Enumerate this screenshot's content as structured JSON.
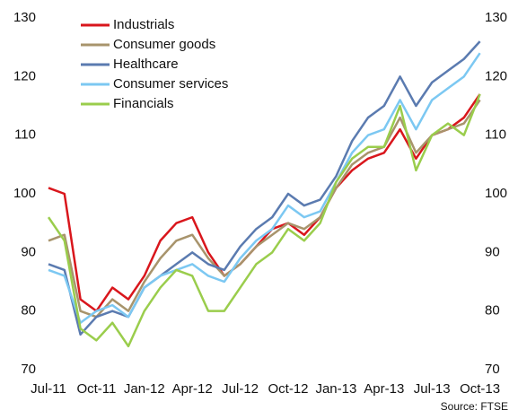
{
  "chart_data": {
    "type": "line",
    "categories": [
      "Jul-11",
      null,
      null,
      "Oct-11",
      null,
      null,
      "Jan-12",
      null,
      null,
      "Apr-12",
      null,
      null,
      "Jul-12",
      null,
      null,
      "Oct-12",
      null,
      null,
      "Jan-13",
      null,
      null,
      "Apr-13",
      null,
      null,
      "Jul-13",
      null,
      null,
      "Oct-13"
    ],
    "series": [
      {
        "name": "Industrials",
        "color": "#d9161c",
        "values": [
          101,
          100,
          82,
          80,
          84,
          82,
          86,
          92,
          95,
          96,
          90,
          86,
          88,
          91,
          94,
          95,
          93,
          96,
          101,
          104,
          106,
          107,
          111,
          106,
          110,
          111,
          113,
          117
        ]
      },
      {
        "name": "Consumer goods",
        "color": "#a8946c",
        "values": [
          92,
          93,
          80,
          79,
          82,
          80,
          85,
          89,
          92,
          93,
          89,
          86,
          88,
          91,
          93,
          95,
          94,
          96,
          101,
          105,
          107,
          108,
          113,
          107,
          110,
          111,
          112,
          116
        ]
      },
      {
        "name": "Healthcare",
        "color": "#5b7bb0",
        "values": [
          88,
          87,
          76,
          79,
          80,
          79,
          84,
          86,
          88,
          90,
          88,
          87,
          91,
          94,
          96,
          100,
          98,
          99,
          103,
          109,
          113,
          115,
          120,
          115,
          119,
          121,
          123,
          126
        ]
      },
      {
        "name": "Consumer services",
        "color": "#7cc8f2",
        "values": [
          87,
          86,
          78,
          80,
          81,
          79,
          84,
          86,
          87,
          88,
          86,
          85,
          89,
          92,
          94,
          98,
          96,
          97,
          102,
          107,
          110,
          111,
          116,
          111,
          116,
          118,
          120,
          124
        ]
      },
      {
        "name": "Financials",
        "color": "#9acd4c",
        "values": [
          96,
          92,
          77,
          75,
          78,
          74,
          80,
          84,
          87,
          86,
          80,
          80,
          84,
          88,
          90,
          94,
          92,
          95,
          102,
          106,
          108,
          108,
          115,
          104,
          110,
          112,
          110,
          117
        ]
      }
    ],
    "ylim": [
      70,
      130
    ],
    "yticks": [
      70,
      80,
      90,
      100,
      110,
      120,
      130
    ],
    "y2lim": [
      70,
      130
    ],
    "y2ticks": [
      70,
      80,
      90,
      100,
      110,
      120,
      130
    ],
    "source": "Source: FTSE"
  }
}
